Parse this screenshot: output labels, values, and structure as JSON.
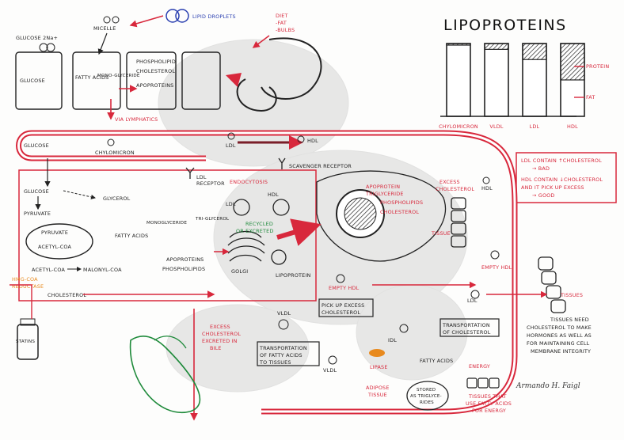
{
  "title": "LIPOPROTEINS",
  "signature": "Armando H. Faigl",
  "legend": {
    "protein": "PROTEIN",
    "fat": "FAT",
    "ldl_note": "LDL CONTAIN ↑CHOLESTEROL",
    "ldl_bad": "→ BAD",
    "hdl_note_1": "HDL CONTAIN ↓CHOLESTEROL",
    "hdl_note_2": "AND IT PICK UP EXCESS",
    "hdl_good": "→ GOOD"
  },
  "chart_data": {
    "type": "bar",
    "categories": [
      "CHYLOMICRON",
      "VLDL",
      "LDL",
      "HDL"
    ],
    "series": [
      {
        "name": "PROTEIN",
        "values": [
          2,
          8,
          22,
          50
        ]
      },
      {
        "name": "FAT",
        "values": [
          98,
          92,
          78,
          50
        ]
      }
    ],
    "ylim": [
      0,
      100
    ]
  },
  "top": {
    "lipid_droplets": "LIPID DROPLETS",
    "diet": "DIET",
    "fat": "-FAT",
    "bulbs": "-BULBS",
    "glucose_na": "GLUCOSE  2Na+",
    "micelle": "MICELLE",
    "glucose_1": "GLUCOSE",
    "fatty_acids": "FATTY ACIDS",
    "monoglyceride": "MONO-GLYCERIDE",
    "phospholipid": "PHOSPHOLIPID",
    "cholesterol_1": "CHOLESTEROL",
    "apoproteins": "APOPROTEINS",
    "via_lymphatics": "VIA LYMPHATICS",
    "glucose_2": "GLUCOSE",
    "chylomicron": "CHYLOMICRON",
    "ldl_top": "LDL",
    "hdl_top": "HDL"
  },
  "cell": {
    "glucose": "GLUCOSE",
    "pyruvate": "PYRUVATE",
    "glycerol": "GLYCEROL",
    "pyruvate_2": "PYRUVATE",
    "acetyl_coa": "ACETYL-COA",
    "acetyl_coa_2": "ACETYL-COA",
    "malonyl_coa": "MALONYL-COA",
    "fatty_acids": "FATTY ACIDS",
    "monoglyceride": "MONOGLYCERIDE",
    "triglycerol": "TRI-GLYCEROL",
    "apoproteins": "APOPROTEINS",
    "phospholipids": "PHOSPHOLIPIDS",
    "golgi": "GOLGI",
    "hmg_coa_1": "HMG-COA",
    "hmg_coa_2": "REDUCTASE",
    "cholesterol": "CHOLESTEROL",
    "statins": "STATINS",
    "ldl_receptor_1": "LDL",
    "ldl_receptor_2": "RECEPTOR",
    "endocytosis": "ENDOCYTOSIS",
    "scavenger": "SCAVENGER RECEPTOR",
    "ldl_in": "LDL",
    "hdl_in": "HDL",
    "recycled_1": "RECYCLED",
    "recycled_2": "OR EXCRETED",
    "lipoprotein": "LIPOPROTEIN"
  },
  "liver": {
    "apoprotein": "APOPROTEIN",
    "triglyceride": "TRIGLYCERIDE",
    "phospholipids": "PHOSPHOLIPIDS",
    "cholesterol": "CHOLESTEROL",
    "excess_cholesterol_1": "EXCESS",
    "excess_cholesterol_2": "CHOLESTEROL",
    "tissue": "TISSUE",
    "hdl": "HDL",
    "empty_hdl": "EMPTY HDL",
    "empty_hdl_2": "EMPTY HDL",
    "pick_up_1": "PICK UP EXCESS",
    "pick_up_2": "CHOLESTEROL",
    "excess_bile_1": "EXCESS",
    "excess_bile_2": "CHOLESTEROL",
    "excess_bile_3": "EXCRETED IN",
    "excess_bile_4": "BILE"
  },
  "bottom": {
    "vldl_1": "VLDL",
    "vldl_2": "VLDL",
    "idl": "IDL",
    "ldl": "LDL",
    "transport_fa_1": "TRANSPORTATION",
    "transport_fa_2": "OF FATTY ACIDS",
    "transport_fa_3": "TO TISSUES",
    "transport_ch_1": "TRANSPORTATION",
    "transport_ch_2": "OF CHOLESTEROL",
    "lipase": "LIPASE",
    "fatty_acids": "FATTY ACIDS",
    "energy": "ENERGY",
    "adipose_1": "ADIPOSE",
    "adipose_2": "TISSUE",
    "stored_1": "STORED",
    "stored_2": "AS TRIGLYCE-",
    "stored_3": "RIDES",
    "tissues_energy_1": "TISSUES THAT",
    "tissues_energy_2": "USE FATTY ACIDS",
    "tissues_energy_3": "FOR ENERGY",
    "tissues": "TISSUES",
    "tissues_need_1": "TISSUES NEED",
    "tissues_need_2": "CHOLESTEROL TO MAKE",
    "tissues_need_3": "HORMONES AS WELL AS",
    "tissues_need_4": "FOR MAINTAINING CELL",
    "tissues_need_5": "MEMBRANE INTEGRITY"
  }
}
